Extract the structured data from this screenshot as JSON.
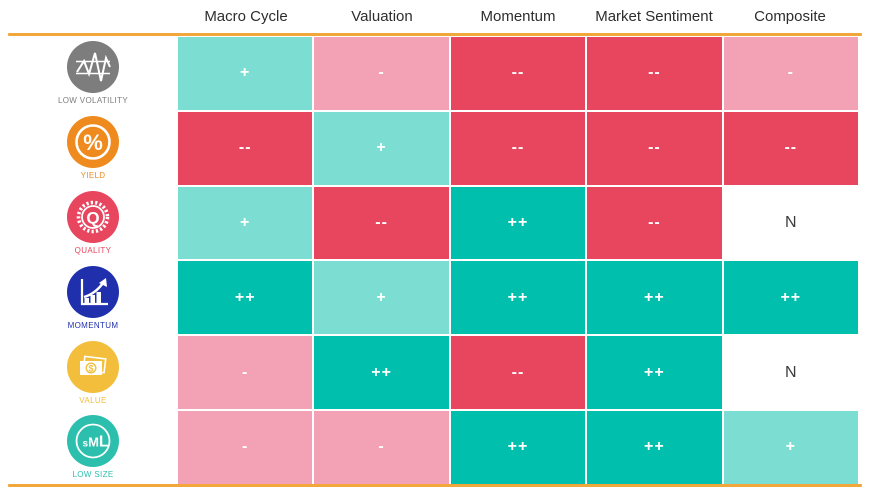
{
  "header": {
    "columns": [
      {
        "key": "macro-cycle",
        "label": "Macro Cycle"
      },
      {
        "key": "valuation",
        "label": "Valuation"
      },
      {
        "key": "momentum",
        "label": "Momentum"
      },
      {
        "key": "market-sentiment",
        "label": "Market Sentiment"
      },
      {
        "key": "composite",
        "label": "Composite"
      }
    ]
  },
  "rows": [
    {
      "key": "low-volatility",
      "factor": "LOW VOLATILITY",
      "icon": "low-volatility-icon",
      "color": "#7d7d7d",
      "cells": [
        {
          "value": "+",
          "tone": "positive"
        },
        {
          "value": "-",
          "tone": "negative"
        },
        {
          "value": "--",
          "tone": "strong_negative"
        },
        {
          "value": "--",
          "tone": "strong_negative"
        },
        {
          "value": "-",
          "tone": "negative"
        }
      ]
    },
    {
      "key": "yield",
      "factor": "YIELD",
      "icon": "yield-icon",
      "color": "#ee8a1e",
      "cells": [
        {
          "value": "--",
          "tone": "strong_negative"
        },
        {
          "value": "+",
          "tone": "positive"
        },
        {
          "value": "--",
          "tone": "strong_negative"
        },
        {
          "value": "--",
          "tone": "strong_negative"
        },
        {
          "value": "--",
          "tone": "strong_negative"
        }
      ]
    },
    {
      "key": "quality",
      "factor": "QUALITY",
      "icon": "quality-icon",
      "color": "#e8455f",
      "cells": [
        {
          "value": "+",
          "tone": "positive"
        },
        {
          "value": "--",
          "tone": "strong_negative"
        },
        {
          "value": "++",
          "tone": "strong_positive"
        },
        {
          "value": "--",
          "tone": "strong_negative"
        },
        {
          "value": "N",
          "tone": "neutral"
        }
      ]
    },
    {
      "key": "momentum",
      "factor": "MOMENTUM",
      "icon": "momentum-icon",
      "color": "#2030ac",
      "cells": [
        {
          "value": "++",
          "tone": "strong_positive"
        },
        {
          "value": "+",
          "tone": "positive"
        },
        {
          "value": "++",
          "tone": "strong_positive"
        },
        {
          "value": "++",
          "tone": "strong_positive"
        },
        {
          "value": "++",
          "tone": "strong_positive"
        }
      ]
    },
    {
      "key": "value",
      "factor": "VALUE",
      "icon": "value-icon",
      "color": "#f2be3c",
      "cells": [
        {
          "value": "-",
          "tone": "negative"
        },
        {
          "value": "++",
          "tone": "strong_positive"
        },
        {
          "value": "--",
          "tone": "strong_negative"
        },
        {
          "value": "++",
          "tone": "strong_positive"
        },
        {
          "value": "N",
          "tone": "neutral"
        }
      ]
    },
    {
      "key": "low-size",
      "factor": "LOW SIZE",
      "icon": "low-size-icon",
      "color": "#2cbfae",
      "cells": [
        {
          "value": "-",
          "tone": "negative"
        },
        {
          "value": "-",
          "tone": "negative"
        },
        {
          "value": "++",
          "tone": "strong_positive"
        },
        {
          "value": "++",
          "tone": "strong_positive"
        },
        {
          "value": "+",
          "tone": "positive"
        }
      ]
    }
  ],
  "colors": {
    "strong_positive": "#00bfac",
    "positive": "#7cded3",
    "negative": "#f3a2b6",
    "strong_negative": "#e8455f",
    "neutral": "#ffffff",
    "rule": "#f2a73b",
    "header_text": "#2d2d2d",
    "neutral_text": "#3c3c3c"
  },
  "chart_data": {
    "type": "heatmap",
    "title": "Factor ratings matrix",
    "columns": [
      "Macro Cycle",
      "Valuation",
      "Momentum",
      "Market Sentiment",
      "Composite"
    ],
    "rows": [
      "LOW VOLATILITY",
      "YIELD",
      "QUALITY",
      "MOMENTUM",
      "VALUE",
      "LOW SIZE"
    ],
    "values": [
      [
        "+",
        "-",
        "--",
        "--",
        "-"
      ],
      [
        "--",
        "+",
        "--",
        "--",
        "--"
      ],
      [
        "+",
        "--",
        "++",
        "--",
        "N"
      ],
      [
        "++",
        "+",
        "++",
        "++",
        "++"
      ],
      [
        "-",
        "++",
        "--",
        "++",
        "N"
      ],
      [
        "-",
        "-",
        "++",
        "++",
        "+"
      ]
    ],
    "value_scale": {
      "++": "strong positive (dark teal #00bfac)",
      "+": "positive (light teal #7cded3)",
      "-": "negative (light pink #f3a2b6)",
      "--": "strong negative (dark pink #e8455f)",
      "N": "neutral (white)"
    },
    "legend_position": "none",
    "grid": "2px white gaps between cells, orange rules above and below table"
  }
}
